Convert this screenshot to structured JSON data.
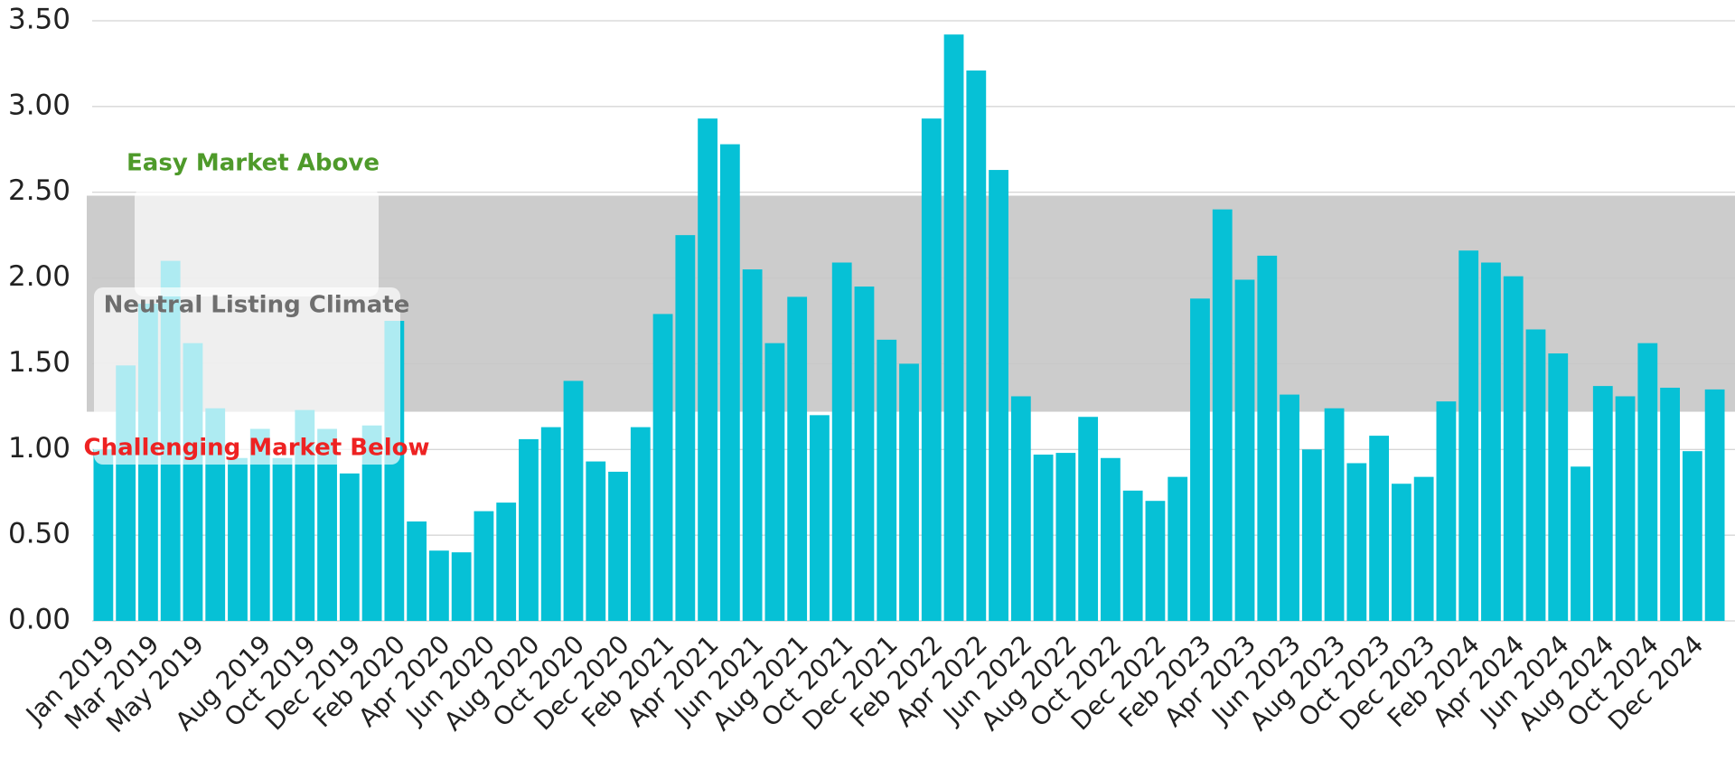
{
  "chart_data": {
    "type": "bar",
    "categories": [
      "Jan 2019",
      null,
      "Mar 2019",
      null,
      "May 2019",
      null,
      null,
      "Aug 2019",
      null,
      "Oct 2019",
      null,
      "Dec 2019",
      null,
      "Feb 2020",
      null,
      "Apr 2020",
      null,
      "Jun 2020",
      null,
      "Aug 2020",
      null,
      "Oct 2020",
      null,
      "Dec 2020",
      null,
      "Feb 2021",
      null,
      "Apr 2021",
      null,
      "Jun 2021",
      null,
      "Aug 2021",
      null,
      "Oct 2021",
      null,
      "Dec 2021",
      null,
      "Feb 2022",
      null,
      "Apr 2022",
      null,
      "Jun 2022",
      null,
      "Aug 2022",
      null,
      "Oct 2022",
      null,
      "Dec 2022",
      null,
      "Feb 2023",
      null,
      "Apr 2023",
      null,
      "Jun 2023",
      null,
      "Aug 2023",
      null,
      "Oct 2023",
      null,
      "Dec 2023",
      null,
      "Feb 2024",
      null,
      "Apr 2024",
      null,
      "Jun 2024",
      null,
      "Aug 2024",
      null,
      "Oct 2024",
      null,
      "Dec 2024",
      null
    ],
    "values": [
      1.0,
      1.49,
      1.85,
      2.1,
      1.62,
      1.24,
      0.95,
      1.12,
      0.95,
      1.23,
      1.12,
      0.86,
      1.14,
      1.75,
      0.58,
      0.41,
      0.4,
      0.64,
      0.69,
      1.06,
      1.13,
      1.4,
      0.93,
      0.87,
      1.13,
      1.79,
      2.25,
      2.93,
      2.78,
      2.05,
      1.62,
      1.89,
      1.2,
      2.09,
      1.95,
      1.64,
      1.5,
      2.93,
      3.42,
      3.21,
      2.63,
      1.31,
      0.97,
      0.98,
      1.19,
      0.95,
      0.76,
      0.7,
      0.84,
      1.88,
      2.4,
      1.99,
      2.13,
      1.32,
      1.0,
      1.24,
      0.92,
      1.08,
      0.8,
      0.84,
      1.28,
      2.16,
      2.09,
      2.01,
      1.7,
      1.56,
      0.9,
      1.37,
      1.31,
      1.62,
      1.36,
      0.99,
      1.35
    ],
    "color": "#06c1d6",
    "ylim": [
      0,
      3.5
    ],
    "yticks": [
      {
        "value": 0,
        "label": "0.00"
      },
      {
        "value": 0.5,
        "label": "0.50"
      },
      {
        "value": 1,
        "label": "1.00"
      },
      {
        "value": 1.5,
        "label": "1.50"
      },
      {
        "value": 2,
        "label": "2.00"
      },
      {
        "value": 2.5,
        "label": "2.50"
      },
      {
        "value": 3,
        "label": "3.00"
      },
      {
        "value": 3.5,
        "label": "3.50"
      }
    ],
    "grid": true,
    "neutral_band": [
      1.22,
      2.48
    ],
    "band_color": "#cccccc",
    "annotations": [
      {
        "text": "Easy Market Above",
        "color": "#4e9a2a"
      },
      {
        "text": "Neutral Listing Climate",
        "color": "#6e6e6e"
      },
      {
        "text": "Challenging Market Below",
        "color": "#ee2222"
      }
    ]
  }
}
